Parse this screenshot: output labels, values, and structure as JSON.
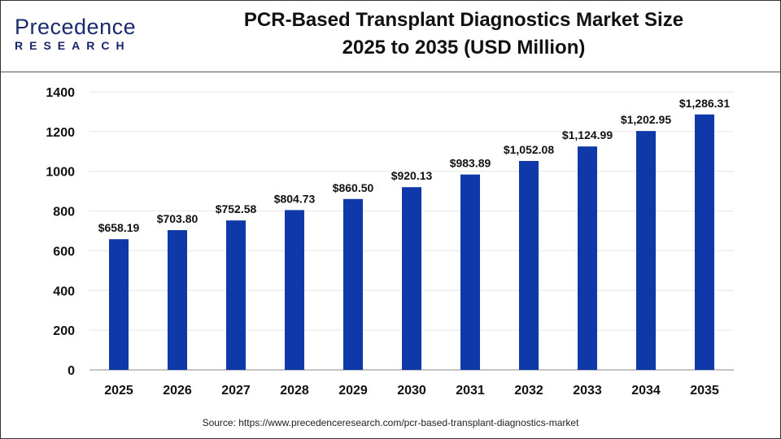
{
  "logo": {
    "text_top": "Precedence",
    "text_bottom": "RESEARCH"
  },
  "title_line1": "PCR-Based Transplant Diagnostics Market Size",
  "title_line2": "2025 to 2035 (USD Million)",
  "source": "Source: https://www.precedenceresearch.com/pcr-based-transplant-diagnostics-market",
  "colors": {
    "bar": "#0f38a8",
    "grid": "#e6e6e6",
    "axis": "#b0b0b0"
  },
  "chart_data": {
    "type": "bar",
    "title": "PCR-Based Transplant Diagnostics Market Size 2025 to 2035 (USD Million)",
    "categories": [
      "2025",
      "2026",
      "2027",
      "2028",
      "2029",
      "2030",
      "2031",
      "2032",
      "2033",
      "2034",
      "2035"
    ],
    "values": [
      658.19,
      703.8,
      752.58,
      804.73,
      860.5,
      920.13,
      983.89,
      1052.08,
      1124.99,
      1202.95,
      1286.31
    ],
    "data_labels": [
      "$658.19",
      "$703.80",
      "$752.58",
      "$804.73",
      "$860.50",
      "$920.13",
      "$983.89",
      "$1,052.08",
      "$1,124.99",
      "$1,202.95",
      "$1,286.31"
    ],
    "yticks": [
      0,
      200,
      400,
      600,
      800,
      1000,
      1200,
      1400
    ],
    "ylim": [
      0,
      1400
    ],
    "grid": true,
    "xlabel": "",
    "ylabel": ""
  }
}
